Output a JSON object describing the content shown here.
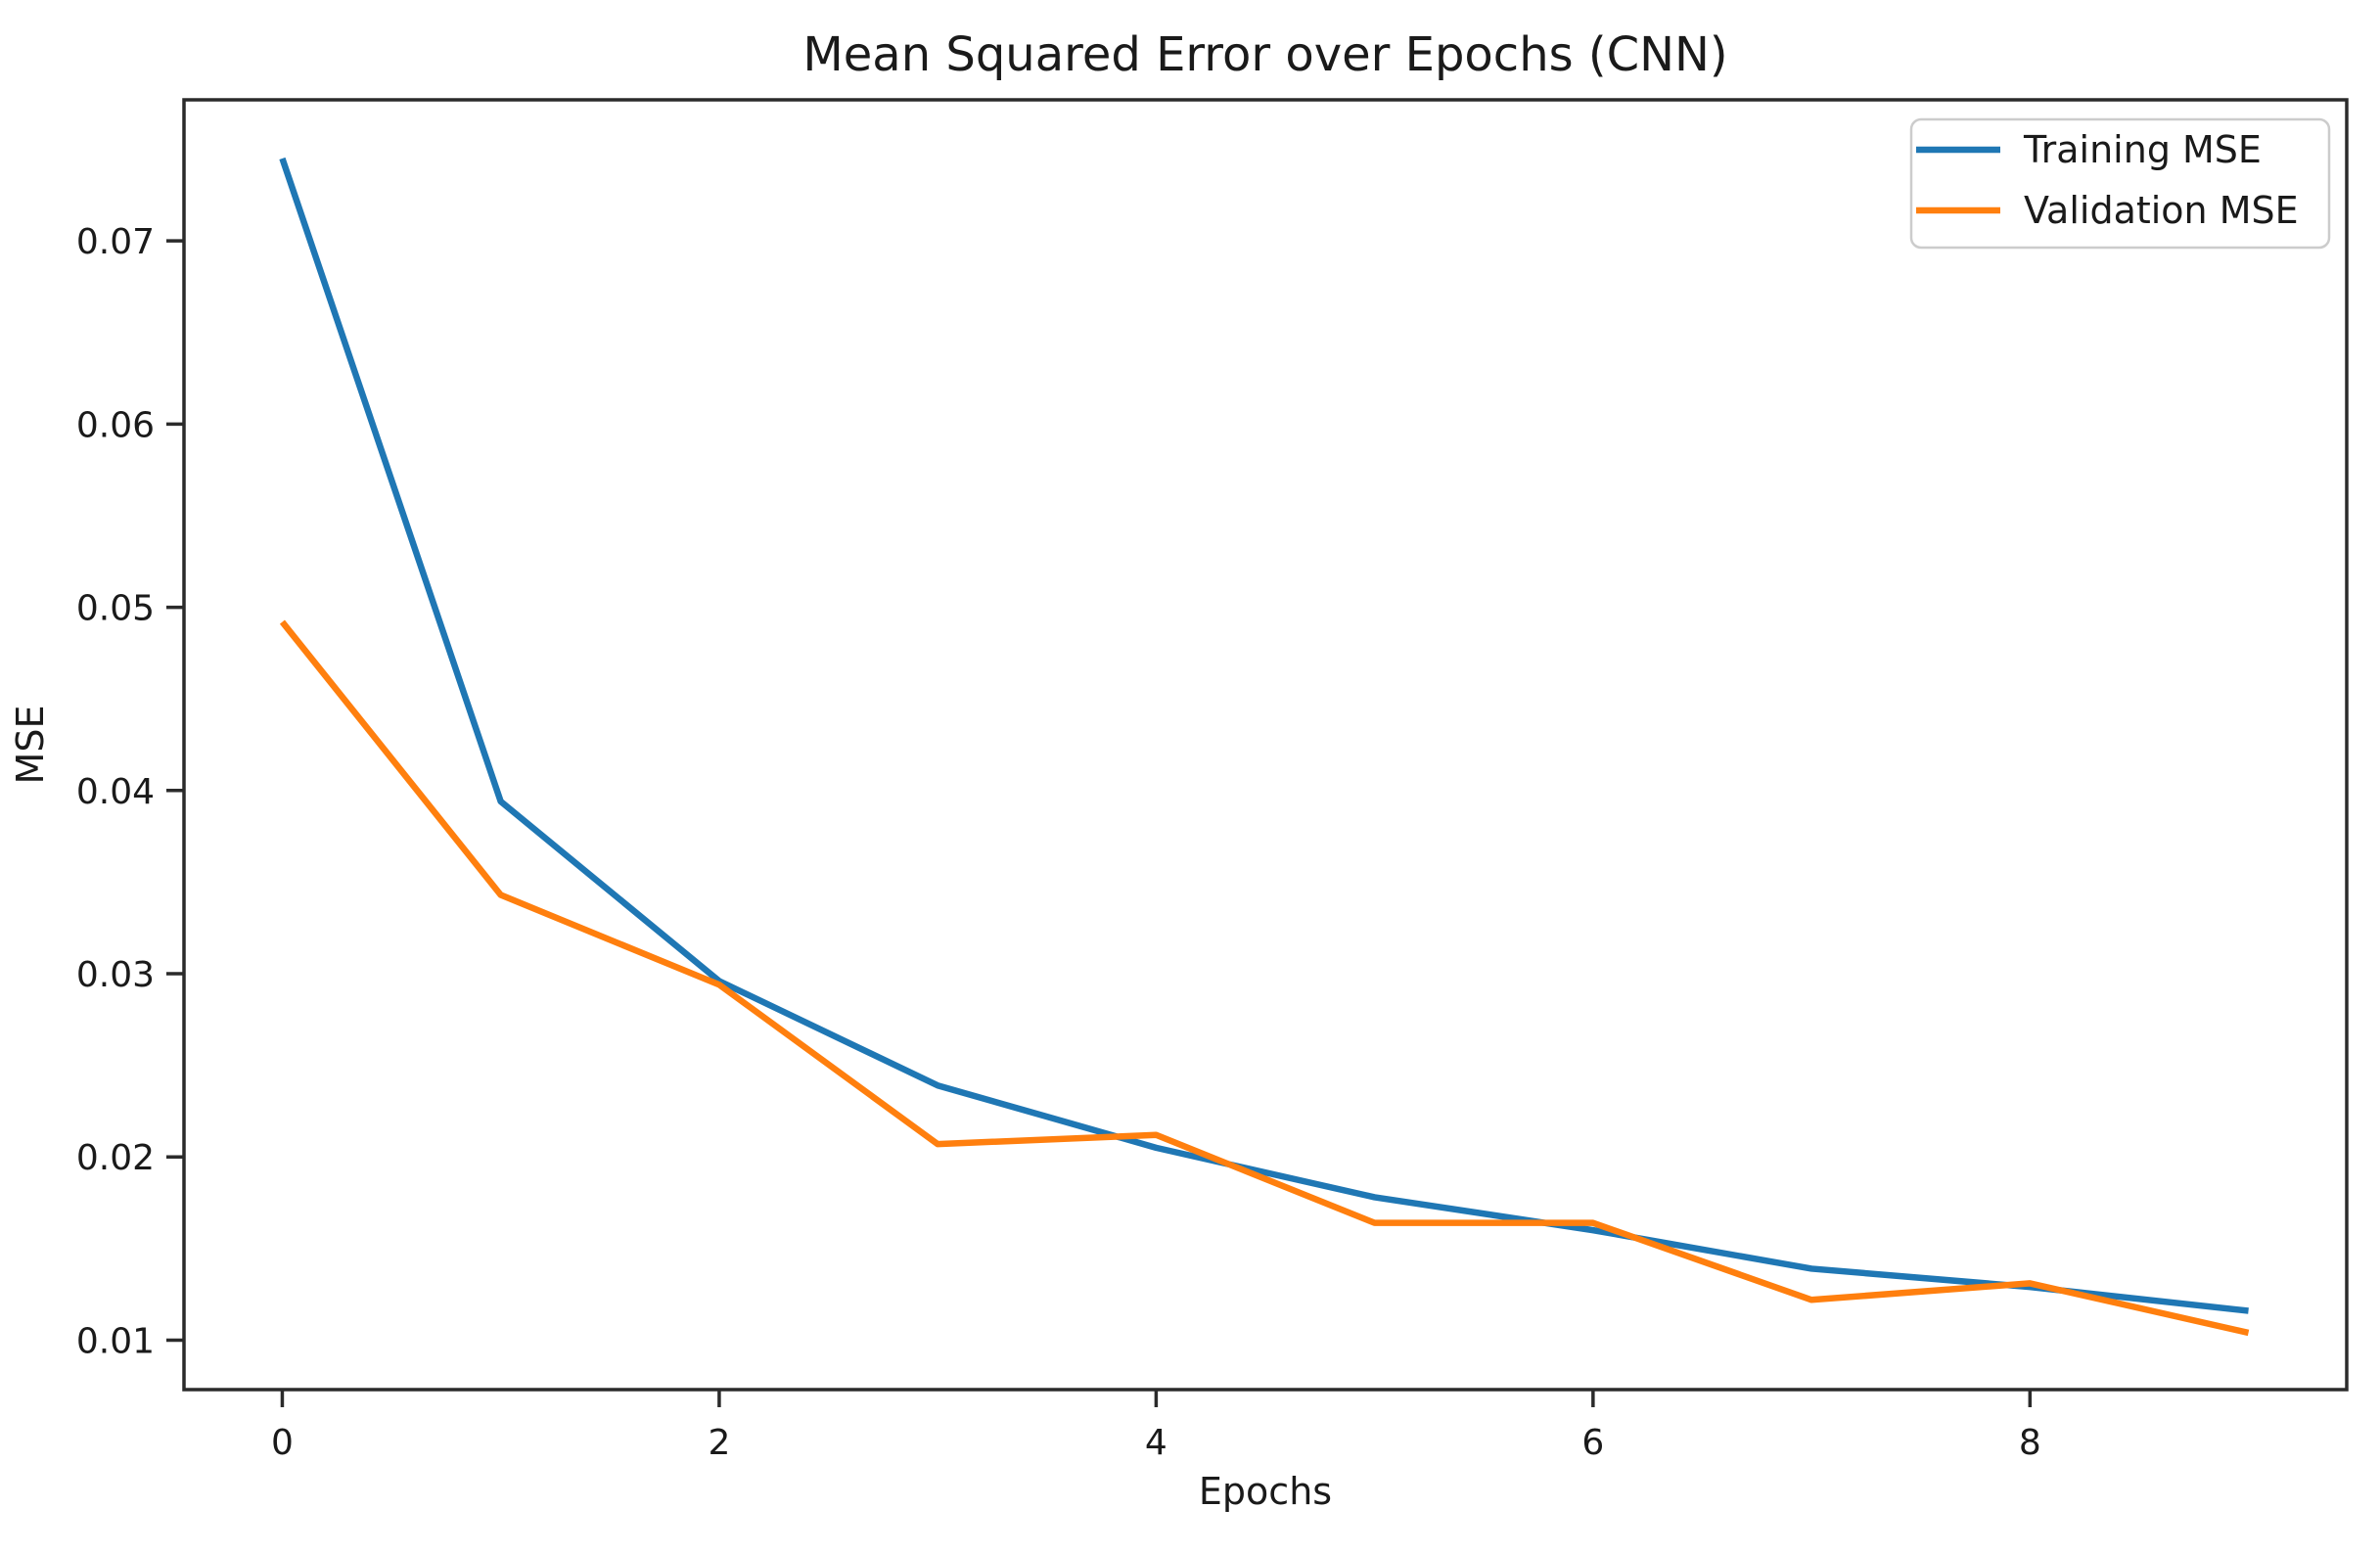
{
  "chart_data": {
    "type": "line",
    "title": "Mean Squared Error over Epochs (CNN)",
    "xlabel": "Epochs",
    "ylabel": "MSE",
    "x": [
      0,
      1,
      2,
      3,
      4,
      5,
      6,
      7,
      8,
      9
    ],
    "series": [
      {
        "name": "Training MSE",
        "color": "#1f77b4",
        "values": [
          0.0745,
          0.0394,
          0.0296,
          0.0239,
          0.0205,
          0.0178,
          0.016,
          0.0139,
          0.0129,
          0.0116
        ]
      },
      {
        "name": "Validation MSE",
        "color": "#ff7f0e",
        "values": [
          0.0492,
          0.0343,
          0.0294,
          0.0207,
          0.0212,
          0.0164,
          0.0164,
          0.0122,
          0.0131,
          0.0104
        ]
      }
    ],
    "xlim": [
      -0.45,
      9.45
    ],
    "ylim": [
      0.0073,
      0.0777
    ],
    "xticks": {
      "values": [
        0,
        2,
        4,
        6,
        8
      ],
      "labels": [
        "0",
        "2",
        "4",
        "6",
        "8"
      ]
    },
    "yticks": {
      "values": [
        0.01,
        0.02,
        0.03,
        0.04,
        0.05,
        0.06,
        0.07
      ],
      "labels": [
        "0.01",
        "0.02",
        "0.03",
        "0.04",
        "0.05",
        "0.06",
        "0.07"
      ]
    },
    "grid": false,
    "legend": {
      "position": "upper right",
      "entries": [
        "Training MSE",
        "Validation MSE"
      ]
    },
    "colors": {
      "axis": "#2b2b2b",
      "text": "#1a1a1a",
      "legend_border": "#cccccc"
    }
  }
}
